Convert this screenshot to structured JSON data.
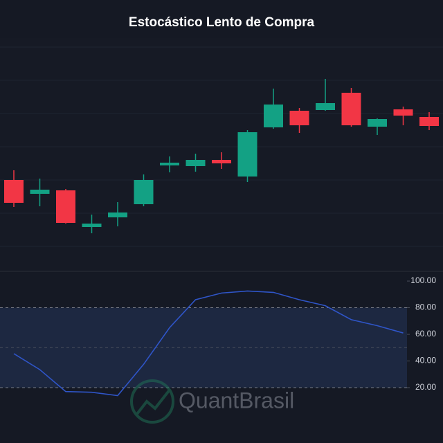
{
  "chart_data": [
    {
      "type": "candlestick",
      "title": "Estocástico Lento de Compra",
      "up_color": "#13a184",
      "down_color": "#f23645",
      "ylim": [
        1,
        34.5
      ],
      "open": [
        14.0,
        12.0,
        12.5,
        7.2,
        8.6,
        10.5,
        16.1,
        16.0,
        16.9,
        14.5,
        21.6,
        24.0,
        24.1,
        26.6,
        21.7,
        24.2,
        23.1
      ],
      "high": [
        15.4,
        14.2,
        12.7,
        9.0,
        10.8,
        14.8,
        17.4,
        17.8,
        18.0,
        21.2,
        27.2,
        24.4,
        28.6,
        27.3,
        22.9,
        24.6,
        23.8
      ],
      "low": [
        10.1,
        10.2,
        7.7,
        6.3,
        7.3,
        10.2,
        15.1,
        15.2,
        15.6,
        13.7,
        21.4,
        20.8,
        24.0,
        21.7,
        20.5,
        21.9,
        21.2
      ],
      "close": [
        10.7,
        12.6,
        7.8,
        7.7,
        9.3,
        14.0,
        16.5,
        16.9,
        16.4,
        20.9,
        24.9,
        21.9,
        25.1,
        21.9,
        22.8,
        23.3,
        21.8
      ]
    },
    {
      "type": "line",
      "color": "#2f55c8",
      "values": [
        45.5,
        33.5,
        17,
        16.5,
        14,
        37.5,
        65,
        86,
        91,
        92.5,
        91.5,
        86,
        81.5,
        71,
        66.5,
        61,
        null
      ],
      "ylim": [
        -21.6,
        107.3
      ],
      "yticks": [
        {
          "value": 20,
          "label": "20.00"
        },
        {
          "value": 40,
          "label": "40.00"
        },
        {
          "value": 60,
          "label": "60.00"
        },
        {
          "value": 80,
          "label": "80.00"
        },
        {
          "value": 100,
          "label": "100.00"
        }
      ],
      "overbought": 80,
      "oversold": 20,
      "midline": 50,
      "watermark": "QuantBrasil"
    }
  ]
}
